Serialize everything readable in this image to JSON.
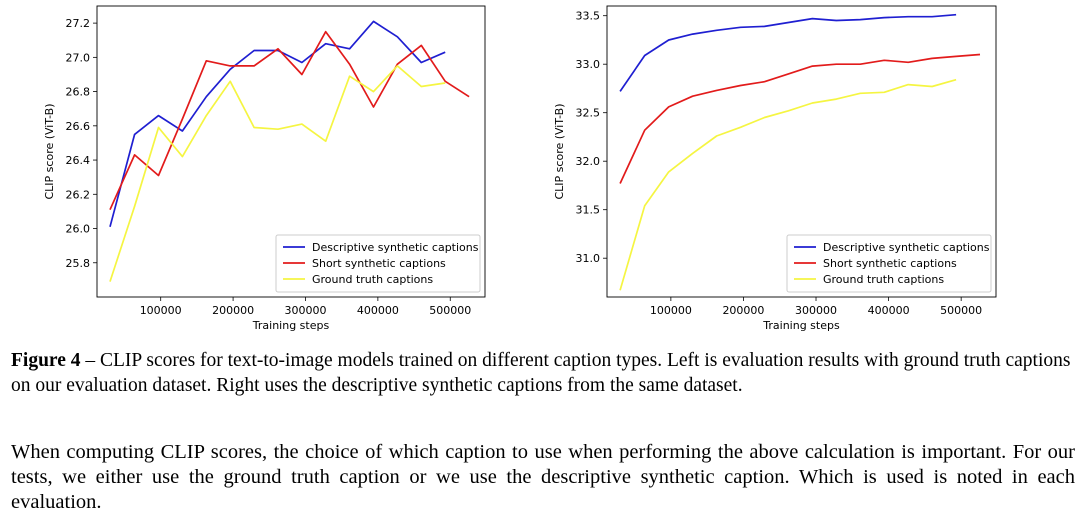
{
  "chart_data": [
    {
      "type": "line",
      "title": "",
      "xlabel": "Training steps",
      "ylabel": "CLIP score (ViT-B)",
      "xlim": [
        12000,
        548000
      ],
      "ylim": [
        25.6,
        27.3
      ],
      "xticks": [
        100000,
        200000,
        300000,
        400000,
        500000
      ],
      "xtick_labels": [
        "100000",
        "200000",
        "300000",
        "400000",
        "500000"
      ],
      "yticks": [
        25.8,
        26.0,
        26.2,
        26.4,
        26.6,
        26.8,
        27.0,
        27.2
      ],
      "ytick_labels": [
        "25.8",
        "26.0",
        "26.2",
        "26.4",
        "26.6",
        "26.8",
        "27.0",
        "27.2"
      ],
      "grid": false,
      "legend_position": "lower-right",
      "series": [
        {
          "name": "Descriptive synthetic captions",
          "color": "#1f1fd1",
          "x": [
            30000,
            64000,
            97000,
            130000,
            163000,
            196000,
            229000,
            262000,
            295000,
            328000,
            361000,
            394000,
            427000,
            460000,
            493000
          ],
          "y": [
            26.01,
            26.55,
            26.66,
            26.57,
            26.77,
            26.93,
            27.04,
            27.04,
            26.97,
            27.08,
            27.05,
            27.21,
            27.12,
            26.97,
            27.03
          ]
        },
        {
          "name": "Short synthetic captions",
          "color": "#e21b1b",
          "x": [
            30000,
            64000,
            97000,
            130000,
            163000,
            196000,
            229000,
            262000,
            295000,
            328000,
            361000,
            394000,
            427000,
            460000,
            493000,
            526000
          ],
          "y": [
            26.11,
            26.43,
            26.31,
            26.64,
            26.98,
            26.95,
            26.95,
            27.05,
            26.9,
            27.15,
            26.96,
            26.71,
            26.96,
            27.07,
            26.86,
            26.77
          ]
        },
        {
          "name": "Ground truth captions",
          "color": "#f5f542",
          "x": [
            30000,
            64000,
            97000,
            130000,
            163000,
            196000,
            229000,
            262000,
            295000,
            328000,
            361000,
            394000,
            427000,
            460000,
            493000
          ],
          "y": [
            25.69,
            26.13,
            26.59,
            26.42,
            26.66,
            26.86,
            26.59,
            26.58,
            26.61,
            26.51,
            26.89,
            26.8,
            26.95,
            26.83,
            26.85
          ]
        }
      ]
    },
    {
      "type": "line",
      "title": "",
      "xlabel": "Training steps",
      "ylabel": "CLIP score (ViT-B)",
      "xlim": [
        12000,
        548000
      ],
      "ylim": [
        30.6,
        33.6
      ],
      "xticks": [
        100000,
        200000,
        300000,
        400000,
        500000
      ],
      "xtick_labels": [
        "100000",
        "200000",
        "300000",
        "400000",
        "500000"
      ],
      "yticks": [
        31.0,
        31.5,
        32.0,
        32.5,
        33.0,
        33.5
      ],
      "ytick_labels": [
        "31.0",
        "31.5",
        "32.0",
        "32.5",
        "33.0",
        "33.5"
      ],
      "grid": false,
      "legend_position": "lower-right",
      "series": [
        {
          "name": "Descriptive synthetic captions",
          "color": "#1f1fd1",
          "x": [
            30000,
            64000,
            97000,
            130000,
            163000,
            196000,
            229000,
            262000,
            295000,
            328000,
            361000,
            394000,
            427000,
            460000,
            493000
          ],
          "y": [
            32.72,
            33.09,
            33.25,
            33.31,
            33.35,
            33.38,
            33.39,
            33.43,
            33.47,
            33.45,
            33.46,
            33.48,
            33.49,
            33.49,
            33.51
          ]
        },
        {
          "name": "Short synthetic captions",
          "color": "#e21b1b",
          "x": [
            30000,
            64000,
            97000,
            130000,
            163000,
            196000,
            229000,
            262000,
            295000,
            328000,
            361000,
            394000,
            427000,
            460000,
            493000,
            526000
          ],
          "y": [
            31.77,
            32.32,
            32.56,
            32.67,
            32.73,
            32.78,
            32.82,
            32.9,
            32.98,
            33.0,
            33.0,
            33.04,
            33.02,
            33.06,
            33.08,
            33.1
          ]
        },
        {
          "name": "Ground truth captions",
          "color": "#f5f542",
          "x": [
            30000,
            64000,
            97000,
            130000,
            163000,
            196000,
            229000,
            262000,
            295000,
            328000,
            361000,
            394000,
            427000,
            460000,
            493000
          ],
          "y": [
            30.67,
            31.54,
            31.89,
            32.08,
            32.26,
            32.35,
            32.45,
            32.52,
            32.6,
            32.64,
            32.7,
            32.71,
            32.79,
            32.77,
            32.84
          ]
        }
      ]
    }
  ],
  "caption": {
    "label": "Figure 4",
    "text": " – CLIP scores for text-to-image models trained on different caption types. Left is evaluation results with ground truth captions on our evaluation dataset. Right uses the descriptive synthetic captions from the same dataset."
  },
  "paragraph": "When computing CLIP scores, the choice of which caption to use when performing the above calculation is important. For our tests, we either use the ground truth caption or we use the descriptive synthetic caption. Which is used is noted in each evaluation."
}
